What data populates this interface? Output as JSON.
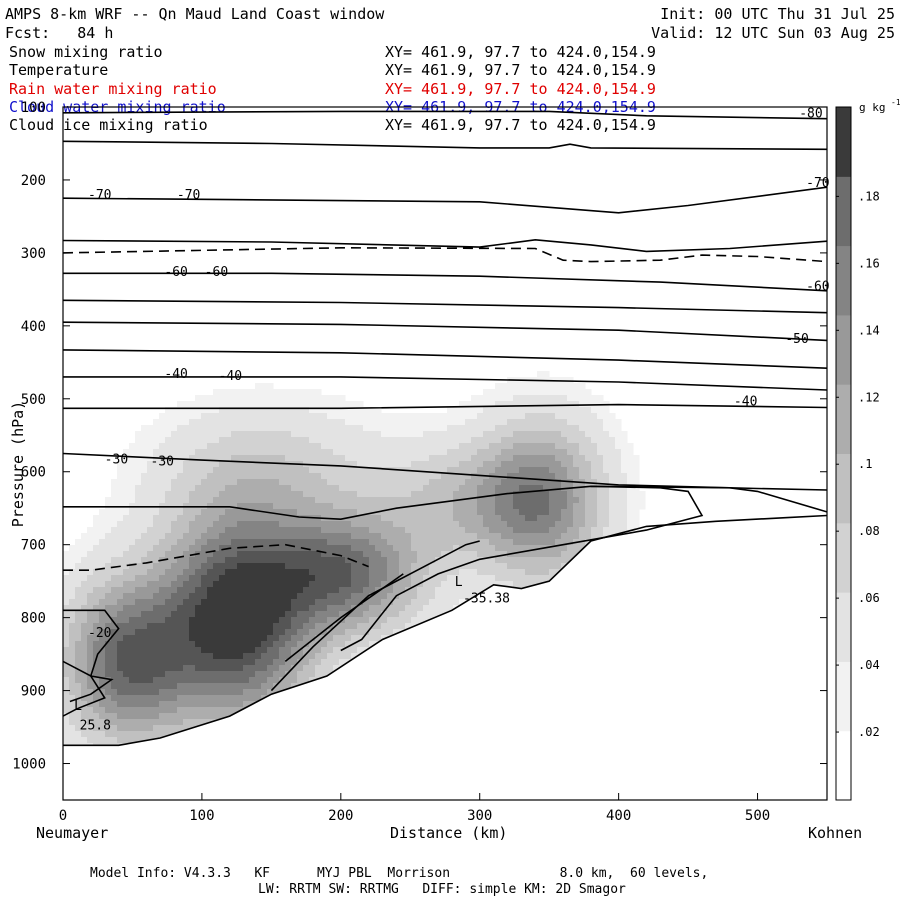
{
  "header": {
    "title": "AMPS 8-km WRF -- Qn Maud Land Coast window",
    "init": "Init: 00 UTC Thu 31 Jul 25",
    "fcst": "Fcst:   84 h",
    "valid": "Valid: 12 UTC Sun 03 Aug 25"
  },
  "fields": [
    {
      "name": "Snow mixing ratio",
      "xy": "XY= 461.9, 97.7 to 424.0,154.9",
      "color": "#000000"
    },
    {
      "name": "Temperature",
      "xy": "XY= 461.9, 97.7 to 424.0,154.9",
      "color": "#000000"
    },
    {
      "name": "Rain water mixing ratio",
      "xy": "XY= 461.9, 97.7 to 424.0,154.9",
      "color": "#e00000"
    },
    {
      "name": "Cloud water mixing ratio",
      "xy": "XY= 461.9, 97.7 to 424.0,154.9",
      "color": "#1010cc"
    },
    {
      "name": "Cloud ice mixing ratio",
      "xy": "XY= 461.9, 97.7 to 424.0,154.9",
      "color": "#000000"
    }
  ],
  "footer": {
    "line1": "Model Info: V4.3.3   KF      MYJ PBL  Morrison              8.0 km,  60 levels,",
    "line2": "LW: RRTM SW: RRTMG   DIFF: simple KM: 2D Smagor"
  },
  "colorbar": {
    "unit": "g kg",
    "unit_sup": "-1",
    "ticks": [
      ".02",
      ".04",
      ".06",
      ".08",
      ".1",
      ".12",
      ".14",
      ".16",
      ".18"
    ],
    "levels": [
      0.0,
      0.02,
      0.04,
      0.06,
      0.08,
      0.1,
      0.12,
      0.14,
      0.16,
      0.18,
      0.2
    ],
    "colors": [
      "#ffffff",
      "#f2f2f2",
      "#e3e3e3",
      "#d2d2d2",
      "#c0c0c0",
      "#adadad",
      "#999999",
      "#848484",
      "#6d6d6d",
      "#555555",
      "#3a3a3a"
    ]
  },
  "chart_data": {
    "type": "heatmap",
    "title": "",
    "xlabel": "Distance (km)",
    "ylabel": "Pressure (hPa)",
    "x_left_label": "Neumayer",
    "x_right_label": "Kohnen",
    "xlim": [
      0,
      550
    ],
    "ylim": [
      1050,
      100
    ],
    "x_ticks": [
      0,
      100,
      200,
      300,
      400,
      500
    ],
    "y_ticks": [
      200,
      300,
      400,
      500,
      600,
      700,
      800,
      900,
      1000
    ],
    "y_tick_labels": [
      "200",
      "300",
      "400",
      "500",
      "600",
      "700",
      "800",
      "900",
      "1000"
    ],
    "y_top_label": "100",
    "snow_blobs": [
      {
        "x": 125,
        "p": 800,
        "sx": 55,
        "sp": 140,
        "q": 0.2
      },
      {
        "x": 45,
        "p": 860,
        "sx": 45,
        "sp": 110,
        "q": 0.15
      },
      {
        "x": 205,
        "p": 740,
        "sx": 55,
        "sp": 80,
        "q": 0.14
      },
      {
        "x": 345,
        "p": 640,
        "sx": 45,
        "sp": 110,
        "q": 0.12
      },
      {
        "x": 150,
        "p": 600,
        "sx": 80,
        "sp": 90,
        "q": 0.05
      },
      {
        "x": 290,
        "p": 640,
        "sx": 60,
        "sp": 80,
        "q": 0.06
      }
    ],
    "terrain": [
      [
        0,
        975
      ],
      [
        40,
        975
      ],
      [
        70,
        965
      ],
      [
        120,
        935
      ],
      [
        150,
        905
      ],
      [
        190,
        880
      ],
      [
        230,
        830
      ],
      [
        280,
        790
      ],
      [
        310,
        755
      ],
      [
        330,
        760
      ],
      [
        350,
        750
      ],
      [
        380,
        695
      ],
      [
        420,
        675
      ],
      [
        470,
        668
      ],
      [
        520,
        663
      ],
      [
        550,
        660
      ]
    ],
    "isotherms": [
      {
        "label": "-80",
        "points": [
          [
            0,
            108
          ],
          [
            200,
            106
          ],
          [
            350,
            106
          ],
          [
            420,
            112
          ],
          [
            550,
            116
          ]
        ]
      },
      {
        "label": "",
        "points": [
          [
            0,
            147
          ],
          [
            150,
            150
          ],
          [
            300,
            156
          ],
          [
            350,
            156
          ],
          [
            365,
            151
          ],
          [
            380,
            156
          ],
          [
            550,
            158
          ]
        ]
      },
      {
        "label": "-70",
        "points": [
          [
            0,
            225
          ],
          [
            120,
            227
          ],
          [
            300,
            230
          ],
          [
            400,
            245
          ],
          [
            450,
            235
          ],
          [
            550,
            210
          ]
        ]
      },
      {
        "label": "",
        "points": [
          [
            0,
            283
          ],
          [
            150,
            285
          ],
          [
            300,
            292
          ],
          [
            340,
            282
          ],
          [
            380,
            289
          ],
          [
            420,
            298
          ],
          [
            480,
            294
          ],
          [
            550,
            284
          ]
        ]
      },
      {
        "label": "-60",
        "points": [
          [
            0,
            328
          ],
          [
            150,
            328
          ],
          [
            300,
            332
          ],
          [
            430,
            340
          ],
          [
            550,
            352
          ]
        ]
      },
      {
        "label": "",
        "points": [
          [
            0,
            365
          ],
          [
            200,
            368
          ],
          [
            400,
            375
          ],
          [
            550,
            382
          ]
        ]
      },
      {
        "label": "-50",
        "points": [
          [
            0,
            395
          ],
          [
            200,
            398
          ],
          [
            400,
            406
          ],
          [
            550,
            420
          ]
        ]
      },
      {
        "label": "",
        "points": [
          [
            0,
            433
          ],
          [
            200,
            437
          ],
          [
            400,
            447
          ],
          [
            550,
            458
          ]
        ]
      },
      {
        "label": "-40",
        "points": [
          [
            0,
            470
          ],
          [
            200,
            470
          ],
          [
            400,
            477
          ],
          [
            550,
            488
          ]
        ]
      },
      {
        "label": "",
        "points": [
          [
            0,
            513
          ],
          [
            200,
            513
          ],
          [
            400,
            508
          ],
          [
            550,
            512
          ]
        ]
      },
      {
        "label": "-30",
        "points": [
          [
            0,
            575
          ],
          [
            100,
            584
          ],
          [
            200,
            592
          ],
          [
            300,
            605
          ],
          [
            400,
            618
          ],
          [
            500,
            623
          ],
          [
            550,
            625
          ]
        ]
      }
    ],
    "isotherm_labels": [
      {
        "text": "-80",
        "x": 530,
        "p": 113
      },
      {
        "text": "-70",
        "x": 18,
        "p": 225
      },
      {
        "text": "-70",
        "x": 82,
        "p": 225
      },
      {
        "text": "-70",
        "x": 535,
        "p": 208
      },
      {
        "text": "-60",
        "x": 73,
        "p": 330
      },
      {
        "text": "-60",
        "x": 102,
        "p": 330
      },
      {
        "text": "-60",
        "x": 535,
        "p": 350
      },
      {
        "text": "-50",
        "x": 520,
        "p": 422
      },
      {
        "text": "-40",
        "x": 73,
        "p": 470
      },
      {
        "text": "-40",
        "x": 112,
        "p": 473
      },
      {
        "text": "-40",
        "x": 483,
        "p": 508
      },
      {
        "text": "-30",
        "x": 30,
        "p": 587
      },
      {
        "text": "-30",
        "x": 63,
        "p": 590
      },
      {
        "text": "-20",
        "x": 18,
        "p": 825
      }
    ],
    "solid_contours": [
      [
        [
          0,
          648
        ],
        [
          120,
          648
        ],
        [
          170,
          662
        ],
        [
          200,
          665
        ],
        [
          240,
          650
        ],
        [
          320,
          630
        ],
        [
          380,
          620
        ],
        [
          430,
          622
        ],
        [
          450,
          627
        ],
        [
          460,
          660
        ],
        [
          420,
          680
        ],
        [
          360,
          700
        ],
        [
          300,
          720
        ],
        [
          270,
          740
        ],
        [
          240,
          770
        ],
        [
          215,
          830
        ],
        [
          200,
          845
        ]
      ],
      [
        [
          380,
          620
        ],
        [
          480,
          622
        ],
        [
          500,
          627
        ],
        [
          550,
          655
        ]
      ],
      [
        [
          0,
          790
        ],
        [
          30,
          790
        ],
        [
          40,
          815
        ],
        [
          25,
          850
        ],
        [
          20,
          880
        ],
        [
          30,
          910
        ],
        [
          10,
          925
        ],
        [
          0,
          935
        ]
      ],
      [
        [
          0,
          860
        ],
        [
          20,
          880
        ],
        [
          35,
          885
        ],
        [
          20,
          905
        ],
        [
          5,
          915
        ]
      ],
      [
        [
          150,
          900
        ],
        [
          180,
          840
        ],
        [
          220,
          770
        ],
        [
          260,
          730
        ],
        [
          290,
          700
        ],
        [
          300,
          695
        ]
      ],
      [
        [
          160,
          860
        ],
        [
          200,
          800
        ],
        [
          230,
          760
        ],
        [
          245,
          740
        ]
      ]
    ],
    "dashed_contours": [
      [
        [
          0,
          300
        ],
        [
          200,
          293
        ],
        [
          340,
          294
        ],
        [
          360,
          310
        ],
        [
          380,
          312
        ],
        [
          430,
          310
        ],
        [
          460,
          303
        ],
        [
          500,
          305
        ],
        [
          550,
          312
        ]
      ],
      [
        [
          0,
          735
        ],
        [
          20,
          735
        ],
        [
          60,
          725
        ],
        [
          120,
          705
        ],
        [
          160,
          700
        ],
        [
          200,
          715
        ],
        [
          220,
          730
        ]
      ]
    ],
    "annotations": [
      {
        "text": "L",
        "x": 282,
        "p": 755
      },
      {
        "text": "-35.38",
        "x": 288,
        "p": 778
      },
      {
        "text": "L",
        "x": 8,
        "p": 925
      },
      {
        "text": "25.8",
        "x": 12,
        "p": 952
      }
    ]
  }
}
